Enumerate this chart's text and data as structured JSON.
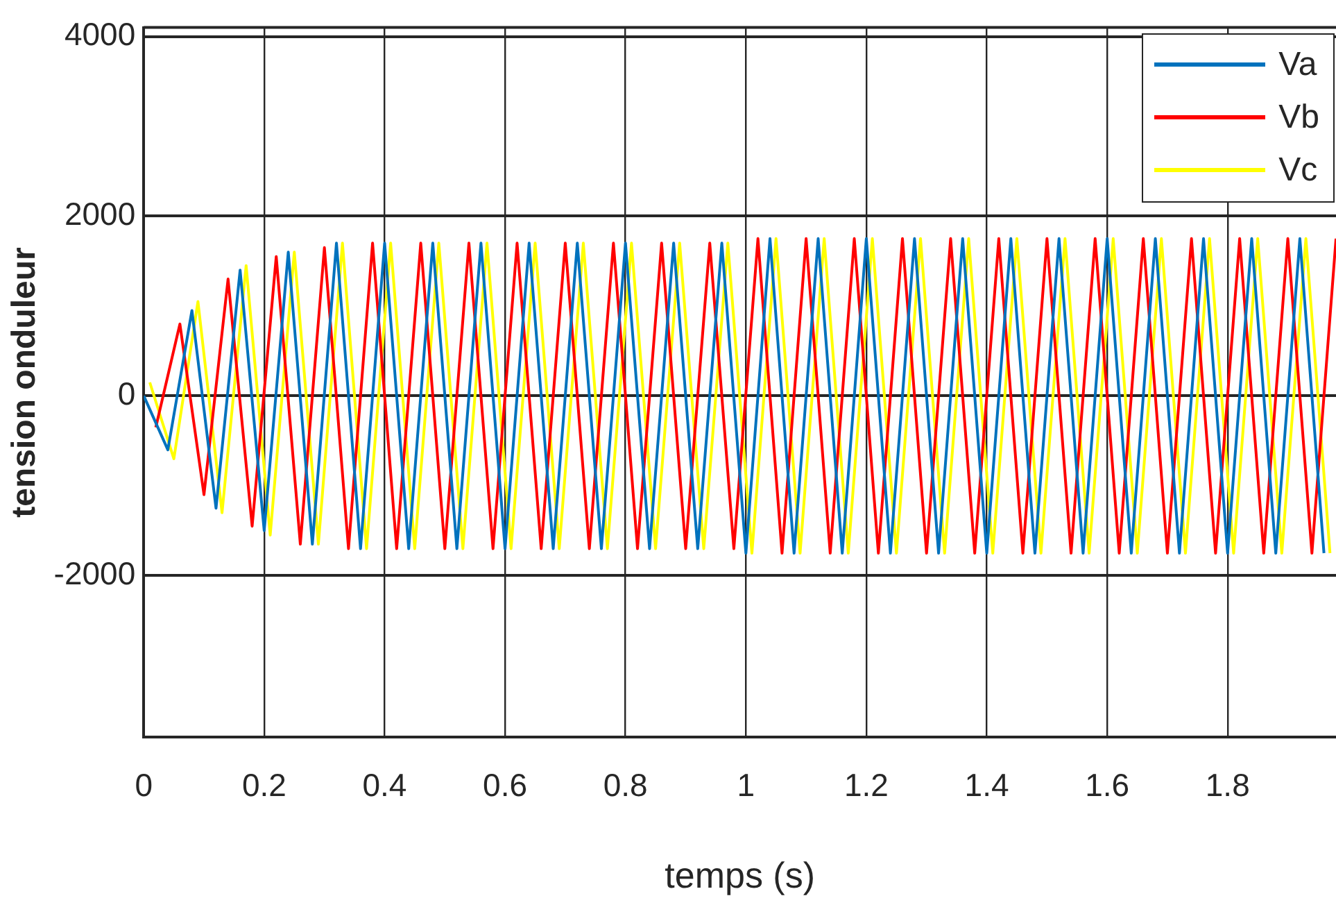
{
  "chart_data": {
    "type": "line",
    "xlabel": "temps (s)",
    "ylabel": "tension onduleur",
    "xlim": [
      0,
      1.98
    ],
    "ylim": [
      -3800,
      4100
    ],
    "xticks": [
      0,
      0.2,
      0.4,
      0.6,
      0.8,
      1,
      1.2,
      1.4,
      1.6,
      1.8
    ],
    "yticks": [
      -2000,
      0,
      2000,
      4000
    ],
    "grid": true,
    "legend": "top right",
    "series": [
      {
        "name": "Va",
        "color": "#0072bd",
        "x": [
          0,
          0.04,
          0.08,
          0.12,
          0.16,
          0.2,
          0.24,
          0.28,
          0.32,
          0.36,
          0.4,
          0.44,
          0.48,
          0.52,
          0.56,
          0.6,
          0.64,
          0.68,
          0.72,
          0.76,
          0.8,
          0.84,
          0.88,
          0.92,
          0.96,
          1,
          1.04,
          1.08,
          1.12,
          1.16,
          1.2,
          1.24,
          1.28,
          1.32,
          1.36,
          1.4,
          1.44,
          1.48,
          1.52,
          1.56,
          1.6,
          1.64,
          1.68,
          1.72,
          1.76,
          1.8,
          1.84,
          1.88,
          1.92,
          1.96
        ],
        "values": [
          0,
          -600,
          950,
          -1250,
          1400,
          -1500,
          1600,
          -1650,
          1700,
          -1700,
          1700,
          -1700,
          1700,
          -1700,
          1700,
          -1700,
          1700,
          -1700,
          1700,
          -1700,
          1700,
          -1700,
          1700,
          -1700,
          1700,
          -1750,
          1750,
          -1750,
          1750,
          -1750,
          1750,
          -1750,
          1750,
          -1750,
          1750,
          -1750,
          1750,
          -1750,
          1750,
          -1750,
          1750,
          -1750,
          1750,
          -1750,
          1750,
          -1750,
          1750,
          -1750,
          1750,
          -1750
        ]
      },
      {
        "name": "Vb",
        "color": "#ff0000",
        "x": [
          0.02,
          0.06,
          0.1,
          0.14,
          0.18,
          0.22,
          0.26,
          0.3,
          0.34,
          0.38,
          0.42,
          0.46,
          0.5,
          0.54,
          0.58,
          0.62,
          0.66,
          0.7,
          0.74,
          0.78,
          0.82,
          0.86,
          0.9,
          0.94,
          0.98,
          1.02,
          1.06,
          1.1,
          1.14,
          1.18,
          1.22,
          1.26,
          1.3,
          1.34,
          1.38,
          1.42,
          1.46,
          1.5,
          1.54,
          1.58,
          1.62,
          1.66,
          1.7,
          1.74,
          1.78,
          1.82,
          1.86,
          1.9,
          1.94,
          1.98
        ],
        "values": [
          -350,
          800,
          -1100,
          1300,
          -1450,
          1550,
          -1650,
          1650,
          -1700,
          1700,
          -1700,
          1700,
          -1700,
          1700,
          -1700,
          1700,
          -1700,
          1700,
          -1700,
          1700,
          -1700,
          1700,
          -1700,
          1700,
          -1700,
          1750,
          -1750,
          1750,
          -1750,
          1750,
          -1750,
          1750,
          -1750,
          1750,
          -1750,
          1750,
          -1750,
          1750,
          -1750,
          1750,
          -1750,
          1750,
          -1750,
          1750,
          -1750,
          1750,
          -1750,
          1750,
          -1750,
          1750
        ]
      },
      {
        "name": "Vc",
        "color": "#ffff00",
        "x": [
          0.01,
          0.05,
          0.09,
          0.13,
          0.17,
          0.21,
          0.25,
          0.29,
          0.33,
          0.37,
          0.41,
          0.45,
          0.49,
          0.53,
          0.57,
          0.61,
          0.65,
          0.69,
          0.73,
          0.77,
          0.81,
          0.85,
          0.89,
          0.93,
          0.97,
          1.01,
          1.05,
          1.09,
          1.13,
          1.17,
          1.21,
          1.25,
          1.29,
          1.33,
          1.37,
          1.41,
          1.45,
          1.49,
          1.53,
          1.57,
          1.61,
          1.65,
          1.69,
          1.73,
          1.77,
          1.81,
          1.85,
          1.89,
          1.93,
          1.97
        ],
        "values": [
          150,
          -700,
          1050,
          -1300,
          1450,
          -1550,
          1600,
          -1650,
          1700,
          -1700,
          1700,
          -1700,
          1700,
          -1700,
          1700,
          -1700,
          1700,
          -1700,
          1700,
          -1700,
          1700,
          -1700,
          1700,
          -1700,
          1700,
          -1750,
          1750,
          -1750,
          1750,
          -1750,
          1750,
          -1750,
          1750,
          -1750,
          1750,
          -1750,
          1750,
          -1750,
          1750,
          -1750,
          1750,
          -1750,
          1750,
          -1750,
          1750,
          -1750,
          1750,
          -1750,
          1750,
          -1750
        ]
      }
    ]
  }
}
